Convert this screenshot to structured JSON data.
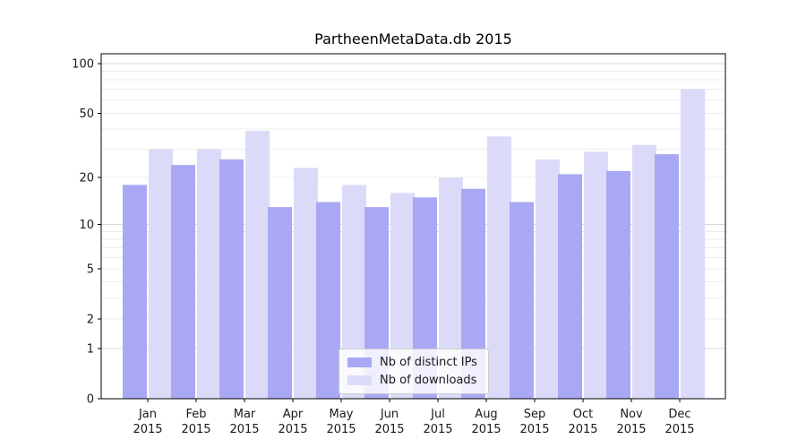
{
  "chart_data": {
    "type": "bar",
    "title": "PartheenMetaData.db 2015",
    "categories": [
      "Jan",
      "Feb",
      "Mar",
      "Apr",
      "May",
      "Jun",
      "Jul",
      "Aug",
      "Sep",
      "Oct",
      "Nov",
      "Dec"
    ],
    "x_axis": {
      "tick_label_second_line": "2015"
    },
    "series": [
      {
        "name": "Nb of distinct IPs",
        "color": "#a8a8f4",
        "values": [
          18,
          24,
          26,
          13,
          14,
          13,
          15,
          17,
          14,
          21,
          22,
          28
        ]
      },
      {
        "name": "Nb of downloads",
        "color": "#dbdbf9",
        "values": [
          30,
          30,
          39,
          23,
          18,
          16,
          20,
          36,
          26,
          29,
          32,
          70
        ]
      }
    ],
    "y_axis": {
      "scale": "log1p",
      "tick_values": [
        100,
        50,
        20,
        10,
        5,
        2,
        1,
        0
      ],
      "major_gridlines": [
        1,
        10,
        100
      ],
      "minor_gridlines": [
        2,
        3,
        4,
        5,
        6,
        7,
        8,
        9,
        20,
        30,
        40,
        50,
        60,
        70,
        80,
        90
      ]
    },
    "legend": {
      "location": "lower-center"
    },
    "grid": true,
    "colors": {
      "grid_minor": "#ececec",
      "grid_major": "#d8d8d8",
      "axis": "#000000",
      "text": "#1a1a1a"
    }
  }
}
